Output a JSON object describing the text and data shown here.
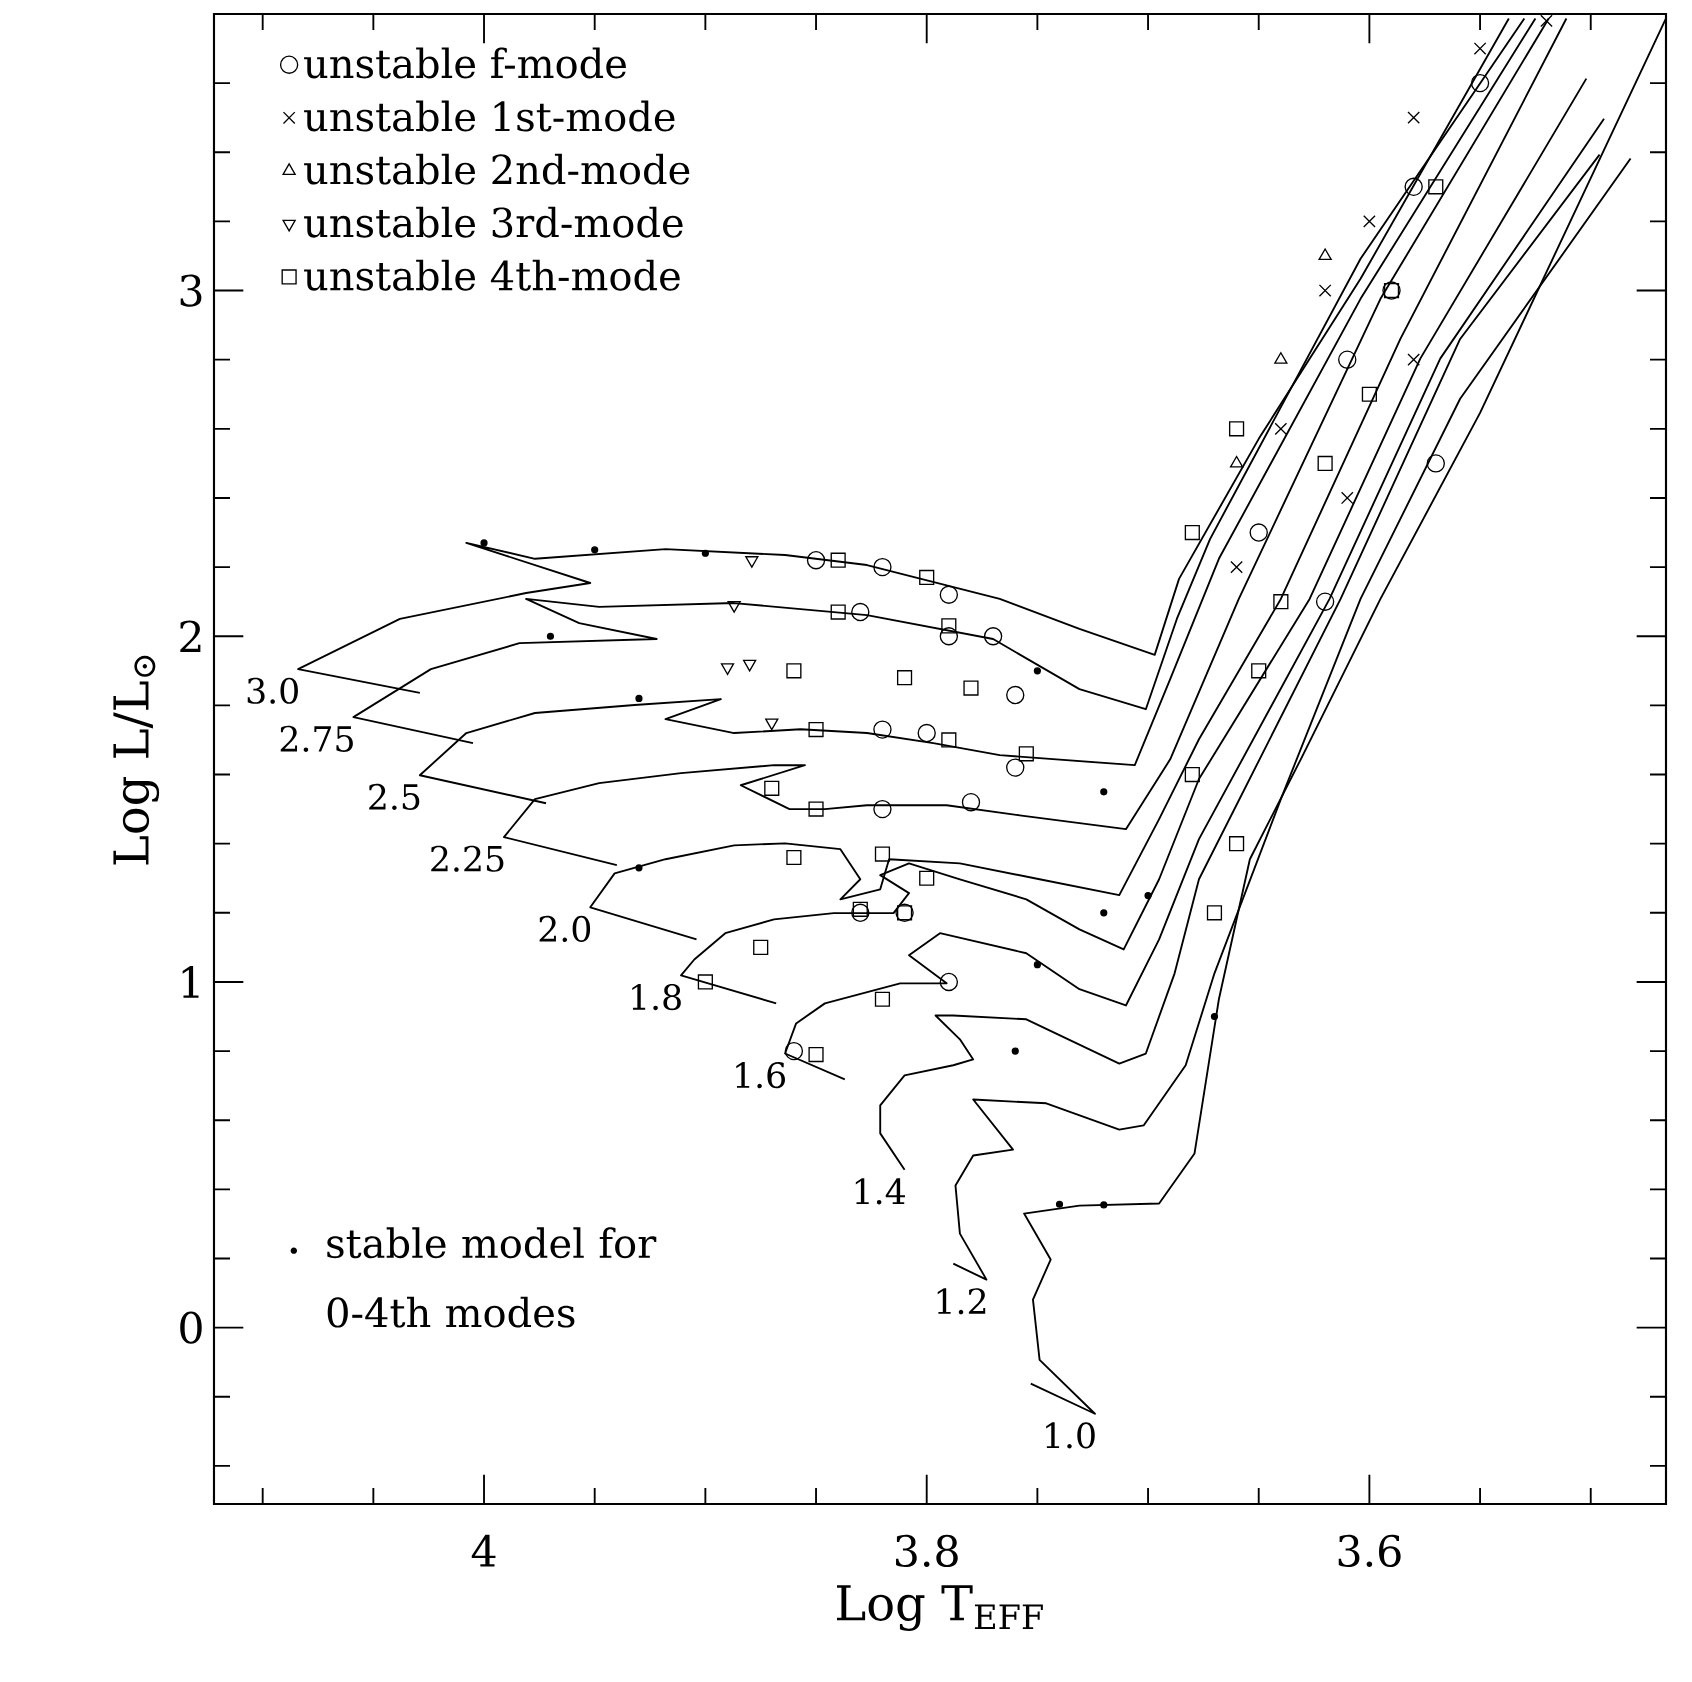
{
  "chart_data": {
    "type": "line",
    "xlabel": "Log T$_{EFF}$",
    "ylabel": "Log L/L$_{⊙}$",
    "xlim": [
      4.122,
      3.466
    ],
    "ylim": [
      -0.51,
      3.8
    ],
    "xticks": [
      {
        "value": 4.1,
        "label": null
      },
      {
        "value": 4.05,
        "label": null
      },
      4,
      {
        "value": 3.95,
        "label": null
      },
      {
        "value": 3.9,
        "label": null
      },
      {
        "value": 3.85,
        "label": null
      },
      3.8,
      {
        "value": 3.75,
        "label": null
      },
      {
        "value": 3.7,
        "label": null
      },
      {
        "value": 3.65,
        "label": null
      },
      3.6,
      {
        "value": 3.55,
        "label": null
      },
      {
        "value": 3.5,
        "label": null
      }
    ],
    "yticks": [
      {
        "value": -0.4,
        "label": null
      },
      {
        "value": -0.2,
        "label": null
      },
      0,
      {
        "value": 0.2,
        "label": null
      },
      {
        "value": 0.4,
        "label": null
      },
      {
        "value": 0.6,
        "label": null
      },
      {
        "value": 0.8,
        "label": null
      },
      1,
      {
        "value": 1.2,
        "label": null
      },
      {
        "value": 1.4,
        "label": null
      },
      {
        "value": 1.6,
        "label": null
      },
      {
        "value": 1.8,
        "label": null
      },
      2,
      {
        "value": 2.2,
        "label": null
      },
      {
        "value": 2.4,
        "label": null
      },
      {
        "value": 2.6,
        "label": null
      },
      {
        "value": 2.8,
        "label": null
      },
      3,
      {
        "value": 3.2,
        "label": null
      },
      {
        "value": 3.4,
        "label": null
      },
      {
        "value": 3.6,
        "label": null
      }
    ],
    "legend": "top left",
    "series": [
      {
        "color": "#000000",
        "marker": "none",
        "x": [
          3.753,
          3.724,
          3.749,
          3.752,
          3.744,
          3.756,
          3.731,
          3.695,
          3.679,
          3.668,
          3.654,
          3.631,
          3.595,
          3.55,
          3.466
        ],
        "values": [
          -0.162,
          -0.249,
          -0.093,
          0.081,
          0.197,
          0.33,
          0.353,
          0.359,
          0.504,
          0.95,
          1.355,
          1.644,
          2.108,
          2.646,
          3.787
        ]
      },
      {
        "color": "#000000",
        "marker": "none",
        "x": [
          3.788,
          3.773,
          3.785,
          3.787,
          3.779,
          3.761,
          3.779,
          3.746,
          3.713,
          3.702,
          3.683,
          3.67,
          3.64,
          3.604,
          3.559,
          3.482
        ],
        "values": [
          0.185,
          0.139,
          0.272,
          0.411,
          0.498,
          0.515,
          0.66,
          0.649,
          0.573,
          0.585,
          0.759,
          1.025,
          1.529,
          2.108,
          2.687,
          3.382
        ]
      },
      {
        "color": "#000000",
        "marker": "none",
        "x": [
          3.81,
          3.821,
          3.821,
          3.81,
          3.788,
          3.779,
          3.785,
          3.796,
          3.788,
          3.755,
          3.713,
          3.701,
          3.688,
          3.677,
          3.613,
          3.559,
          3.496
        ],
        "values": [
          0.457,
          0.562,
          0.643,
          0.73,
          0.759,
          0.776,
          0.834,
          0.903,
          0.903,
          0.892,
          0.764,
          0.793,
          1.025,
          1.297,
          2.108,
          2.86,
          3.393
        ]
      },
      {
        "color": "#000000",
        "marker": "none",
        "x": [
          3.837,
          3.864,
          3.859,
          3.846,
          3.812,
          3.791,
          3.808,
          3.794,
          3.755,
          3.731,
          3.71,
          3.695,
          3.677,
          3.618,
          3.568,
          3.494
        ],
        "values": [
          0.718,
          0.793,
          0.88,
          0.938,
          0.996,
          0.996,
          1.077,
          1.141,
          1.083,
          0.979,
          0.932,
          1.123,
          1.413,
          2.108,
          2.803,
          3.497
        ]
      },
      {
        "color": "#000000",
        "marker": "none",
        "x": [
          3.868,
          3.911,
          3.905,
          3.891,
          3.869,
          3.842,
          3.815,
          3.808,
          3.821,
          3.808,
          3.785,
          3.755,
          3.731,
          3.711,
          3.695,
          3.677,
          3.627,
          3.577,
          3.502
        ],
        "values": [
          0.938,
          1.019,
          1.065,
          1.141,
          1.181,
          1.199,
          1.199,
          1.257,
          1.309,
          1.343,
          1.297,
          1.239,
          1.152,
          1.094,
          1.297,
          1.587,
          2.108,
          2.803,
          3.613
        ]
      },
      {
        "color": "#000000",
        "marker": "none",
        "x": [
          3.904,
          3.952,
          3.941,
          3.918,
          3.887,
          3.864,
          3.839,
          3.83,
          3.839,
          3.821,
          3.817,
          3.785,
          3.749,
          3.713,
          3.695,
          3.677,
          3.64,
          3.586,
          3.511
        ],
        "values": [
          1.123,
          1.216,
          1.314,
          1.355,
          1.395,
          1.401,
          1.384,
          1.297,
          1.239,
          1.268,
          1.355,
          1.343,
          1.297,
          1.251,
          1.471,
          1.702,
          2.108,
          2.86,
          3.787
        ]
      },
      {
        "color": "#000000",
        "marker": "none",
        "x": [
          3.94,
          3.991,
          3.977,
          3.948,
          3.911,
          3.869,
          3.855,
          3.884,
          3.862,
          3.846,
          3.827,
          3.791,
          3.758,
          3.71,
          3.69,
          3.659,
          3.595,
          3.519
        ],
        "values": [
          1.338,
          1.419,
          1.529,
          1.575,
          1.604,
          1.627,
          1.627,
          1.569,
          1.5,
          1.5,
          1.511,
          1.511,
          1.482,
          1.442,
          1.644,
          2.108,
          2.976,
          3.787
        ]
      },
      {
        "color": "#000000",
        "marker": "none",
        "x": [
          3.972,
          4.029,
          4.008,
          3.977,
          3.932,
          3.893,
          3.918,
          3.887,
          3.857,
          3.827,
          3.797,
          3.767,
          3.706,
          3.69,
          3.668,
          3.604,
          3.525
        ],
        "values": [
          1.517,
          1.598,
          1.72,
          1.778,
          1.801,
          1.818,
          1.76,
          1.72,
          1.731,
          1.72,
          1.691,
          1.656,
          1.627,
          1.876,
          2.224,
          2.976,
          3.787
        ]
      },
      {
        "color": "#000000",
        "marker": "none",
        "x": [
          4.005,
          4.059,
          4.024,
          3.984,
          3.922,
          3.957,
          3.981,
          3.948,
          3.887,
          3.827,
          3.77,
          3.731,
          3.701,
          3.687,
          3.672,
          3.604,
          3.53
        ],
        "values": [
          1.691,
          1.766,
          1.905,
          1.98,
          1.992,
          2.038,
          2.108,
          2.085,
          2.096,
          2.061,
          1.992,
          1.847,
          1.789,
          2.05,
          2.281,
          3.092,
          3.787
        ]
      },
      {
        "color": "#000000",
        "marker": "none",
        "x": [
          4.029,
          4.084,
          4.038,
          3.981,
          3.952,
          4.008,
          3.977,
          3.918,
          3.864,
          3.827,
          3.767,
          3.731,
          3.697,
          3.686,
          3.65,
          3.604,
          3.537
        ],
        "values": [
          1.836,
          1.905,
          2.05,
          2.125,
          2.154,
          2.27,
          2.224,
          2.252,
          2.235,
          2.206,
          2.108,
          2.021,
          1.946,
          2.166,
          2.571,
          3.034,
          3.787
        ]
      },
      {
        "type": "scatter",
        "name": "unstable f-mode",
        "color": "#000000",
        "marker": "circle",
        "x": [
          3.85,
          3.82,
          3.79,
          3.77,
          3.83,
          3.79,
          3.76,
          3.82,
          3.8,
          3.76,
          3.82,
          3.78,
          3.81,
          3.83,
          3.79,
          3.86,
          3.65,
          3.61,
          3.58,
          3.57,
          3.62,
          3.59,
          3.55
        ],
        "values": [
          2.22,
          2.2,
          2.12,
          2.0,
          2.07,
          2.0,
          1.83,
          1.73,
          1.72,
          1.62,
          1.5,
          1.52,
          1.2,
          1.2,
          1.0,
          0.8,
          2.3,
          2.8,
          3.3,
          2.5,
          2.1,
          3.0,
          3.6
        ]
      },
      {
        "type": "scatter",
        "name": "unstable 1st-mode",
        "color": "#000000",
        "marker": "cross",
        "x": [
          3.62,
          3.6,
          3.58,
          3.55,
          3.64,
          3.61,
          3.66,
          3.58,
          3.52
        ],
        "values": [
          3.0,
          3.2,
          3.5,
          3.7,
          2.6,
          2.4,
          2.2,
          2.8,
          3.78
        ]
      },
      {
        "type": "scatter",
        "name": "unstable 2nd-mode",
        "color": "#000000",
        "marker": "triangle",
        "x": [
          3.66,
          3.64,
          3.62
        ],
        "values": [
          2.5,
          2.8,
          3.1
        ]
      },
      {
        "type": "scatter",
        "name": "unstable 3rd-mode",
        "color": "#000000",
        "marker": "triangle-down",
        "x": [
          3.879,
          3.887,
          3.88,
          3.89,
          3.87
        ],
        "values": [
          2.22,
          2.09,
          1.92,
          1.91,
          1.75
        ]
      },
      {
        "type": "scatter",
        "name": "unstable 4th-mode",
        "color": "#000000",
        "marker": "square",
        "x": [
          3.84,
          3.8,
          3.84,
          3.79,
          3.86,
          3.81,
          3.78,
          3.85,
          3.79,
          3.755,
          3.87,
          3.85,
          3.86,
          3.82,
          3.8,
          3.83,
          3.81,
          3.875,
          3.9,
          3.82,
          3.85,
          3.67,
          3.66,
          3.68,
          3.65,
          3.64,
          3.62,
          3.6,
          3.59,
          3.57,
          3.68,
          3.66
        ],
        "values": [
          2.22,
          2.17,
          2.07,
          2.03,
          1.9,
          1.88,
          1.85,
          1.73,
          1.7,
          1.66,
          1.56,
          1.5,
          1.36,
          1.37,
          1.3,
          1.21,
          1.2,
          1.1,
          1.0,
          0.95,
          0.79,
          1.2,
          1.4,
          1.6,
          1.9,
          2.1,
          2.5,
          2.7,
          3.0,
          3.3,
          2.3,
          2.6
        ]
      },
      {
        "type": "scatter",
        "name": "stable model for 0-4th modes",
        "color": "#000000",
        "marker": "dot",
        "x": [
          4.0,
          3.95,
          3.9,
          3.97,
          3.93,
          3.75,
          3.72,
          3.72,
          3.74,
          3.76,
          3.67,
          3.93,
          3.7,
          3.75,
          3.72
        ],
        "values": [
          2.27,
          2.25,
          2.24,
          2.0,
          1.82,
          1.9,
          1.55,
          0.355,
          0.357,
          0.8,
          0.9,
          1.33,
          1.25,
          1.05,
          1.2
        ]
      }
    ],
    "annotations": [
      {
        "text": "3.0",
        "x": 4.084,
        "y": 1.905
      },
      {
        "text": "2.75",
        "x": 4.059,
        "y": 1.766
      },
      {
        "text": "2.5",
        "x": 4.029,
        "y": 1.598
      },
      {
        "text": "2.25",
        "x": 3.991,
        "y": 1.419
      },
      {
        "text": "2.0",
        "x": 3.952,
        "y": 1.216
      },
      {
        "text": "1.8",
        "x": 3.911,
        "y": 1.019
      },
      {
        "text": "1.6",
        "x": 3.864,
        "y": 0.793
      },
      {
        "text": "1.4",
        "x": 3.81,
        "y": 0.457
      },
      {
        "text": "1.2",
        "x": 3.773,
        "y": 0.139
      },
      {
        "text": "1.0",
        "x": 3.724,
        "y": -0.249
      }
    ]
  }
}
